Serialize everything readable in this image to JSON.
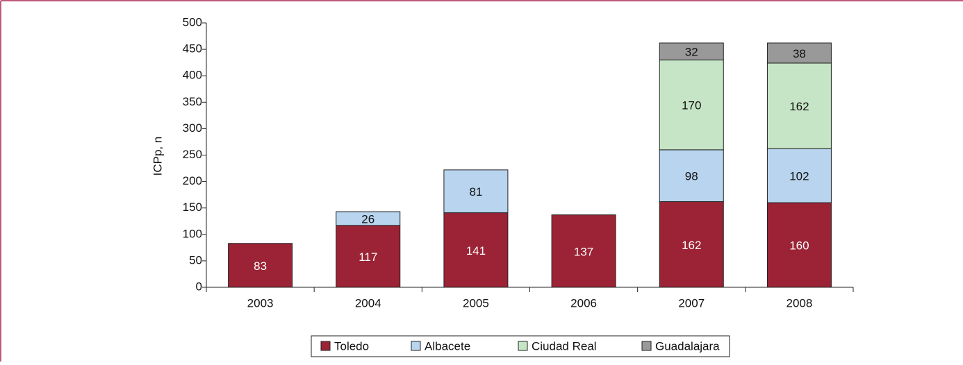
{
  "chart_data": {
    "type": "stacked_bar",
    "y_label": "ICPp, n",
    "categories": [
      "2003",
      "2004",
      "2005",
      "2006",
      "2007",
      "2008"
    ],
    "series": [
      {
        "name": "Toledo",
        "color": "#9b2335",
        "values": [
          83,
          117,
          141,
          137,
          162,
          160
        ]
      },
      {
        "name": "Albacete",
        "color": "#b8d4ee",
        "values": [
          null,
          26,
          81,
          null,
          98,
          102
        ]
      },
      {
        "name": "Ciudad Real",
        "color": "#c6e5c6",
        "values": [
          null,
          null,
          null,
          null,
          170,
          162
        ]
      },
      {
        "name": "Guadalajara",
        "color": "#999999",
        "values": [
          null,
          null,
          null,
          null,
          32,
          38
        ]
      }
    ],
    "ylim": [
      0,
      500
    ],
    "yticks": [
      0,
      50,
      100,
      150,
      200,
      250,
      300,
      350,
      400,
      450,
      500
    ],
    "legend": "bottom"
  }
}
